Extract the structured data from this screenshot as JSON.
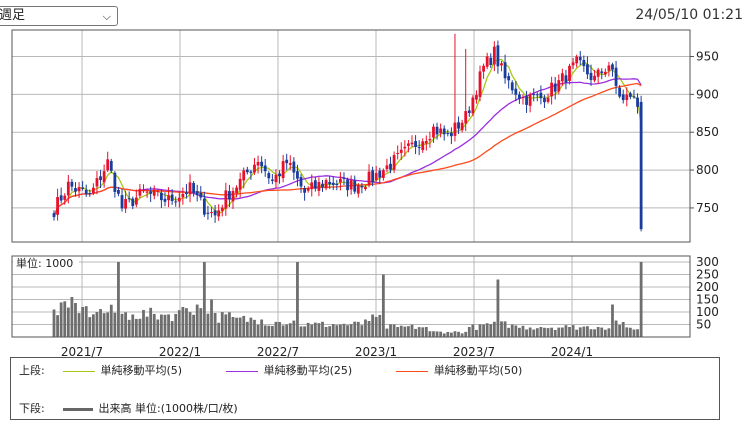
{
  "header": {
    "period_select": "週足",
    "timestamp": "24/05/10 01:21"
  },
  "colors": {
    "up": "#e8102a",
    "down": "#1a3c9c",
    "ma5": "#a8c814",
    "ma25": "#9a2ee0",
    "ma50": "#ff4a1c",
    "volume": "#6e6e6e",
    "grid": "#b8b8b8"
  },
  "chart_data": [
    {
      "type": "candlestick",
      "timeframe": "weekly",
      "y_ticks": [
        750,
        800,
        850,
        900,
        950
      ],
      "ylim": [
        705,
        985
      ],
      "x_tick_labels": [
        "2021/7",
        "2022/1",
        "2022/7",
        "2023/1",
        "2023/7",
        "2024/1"
      ],
      "grid": true,
      "key_points": [
        {
          "week": 0,
          "close": 748
        },
        {
          "week": 4,
          "close": 780
        },
        {
          "week": 10,
          "close": 765
        },
        {
          "week": 15,
          "close": 810
        },
        {
          "week": 19,
          "close": 750
        },
        {
          "week": 25,
          "close": 770
        },
        {
          "week": 32,
          "close": 760
        },
        {
          "week": 38,
          "close": 775
        },
        {
          "week": 42,
          "close": 750
        },
        {
          "week": 45,
          "close": 740
        },
        {
          "week": 48,
          "close": 765
        },
        {
          "week": 52,
          "close": 785
        },
        {
          "week": 57,
          "close": 815
        },
        {
          "week": 61,
          "close": 785
        },
        {
          "week": 65,
          "close": 810
        },
        {
          "week": 70,
          "close": 770
        },
        {
          "week": 76,
          "close": 785
        },
        {
          "week": 84,
          "close": 780
        },
        {
          "week": 89,
          "close": 790
        },
        {
          "week": 96,
          "close": 815
        },
        {
          "week": 101,
          "close": 835
        },
        {
          "week": 106,
          "close": 855
        },
        {
          "week": 110,
          "close": 845
        },
        {
          "week": 115,
          "close": 870
        },
        {
          "week": 120,
          "close": 935
        },
        {
          "week": 123,
          "close": 955
        },
        {
          "week": 126,
          "close": 920
        },
        {
          "week": 131,
          "close": 895
        },
        {
          "week": 136,
          "close": 895
        },
        {
          "week": 141,
          "close": 915
        },
        {
          "week": 146,
          "close": 940
        },
        {
          "week": 151,
          "close": 920
        },
        {
          "week": 155,
          "close": 940
        },
        {
          "week": 157,
          "close": 910
        },
        {
          "week": 159,
          "close": 890
        },
        {
          "week": 161,
          "close": 900
        },
        {
          "week": 163,
          "close": 885
        },
        {
          "week": 164,
          "close": 722
        }
      ],
      "spikes": [
        {
          "week": 112,
          "high": 980
        },
        {
          "week": 115,
          "high": 960
        }
      ]
    },
    {
      "type": "bar",
      "name": "volume",
      "unit_label": "単位: 1000",
      "y_ticks": [
        50,
        100,
        150,
        200,
        250,
        300
      ],
      "ylim": [
        0,
        300
      ],
      "key_points": [
        {
          "week": 0,
          "volume": 110
        },
        {
          "week": 5,
          "volume": 160
        },
        {
          "week": 8,
          "volume": 120
        },
        {
          "week": 12,
          "volume": 100
        },
        {
          "week": 18,
          "volume": 300
        },
        {
          "week": 22,
          "volume": 90
        },
        {
          "week": 30,
          "volume": 90
        },
        {
          "week": 36,
          "volume": 120
        },
        {
          "week": 42,
          "volume": 300
        },
        {
          "week": 44,
          "volume": 150
        },
        {
          "week": 50,
          "volume": 80
        },
        {
          "week": 58,
          "volume": 70
        },
        {
          "week": 63,
          "volume": 60
        },
        {
          "week": 68,
          "volume": 300
        },
        {
          "week": 72,
          "volume": 50
        },
        {
          "week": 80,
          "volume": 50
        },
        {
          "week": 87,
          "volume": 70
        },
        {
          "week": 92,
          "volume": 250
        },
        {
          "week": 96,
          "volume": 40
        },
        {
          "week": 104,
          "volume": 40
        },
        {
          "week": 110,
          "volume": 20
        },
        {
          "week": 116,
          "volume": 40
        },
        {
          "week": 120,
          "volume": 50
        },
        {
          "week": 124,
          "volume": 230
        },
        {
          "week": 128,
          "volume": 50
        },
        {
          "week": 136,
          "volume": 40
        },
        {
          "week": 144,
          "volume": 40
        },
        {
          "week": 152,
          "volume": 40
        },
        {
          "week": 156,
          "volume": 130
        },
        {
          "week": 159,
          "volume": 60
        },
        {
          "week": 162,
          "volume": 30
        },
        {
          "week": 164,
          "volume": 300
        }
      ]
    }
  ],
  "legend": {
    "upper_label": "上段:",
    "upper_items": [
      {
        "label": "単純移動平均(5)"
      },
      {
        "label": "単純移動平均(25)"
      },
      {
        "label": "単純移動平均(50)"
      }
    ],
    "lower_label": "下段:",
    "lower_item": "出来高 単位:(1000株/口/枚)"
  }
}
